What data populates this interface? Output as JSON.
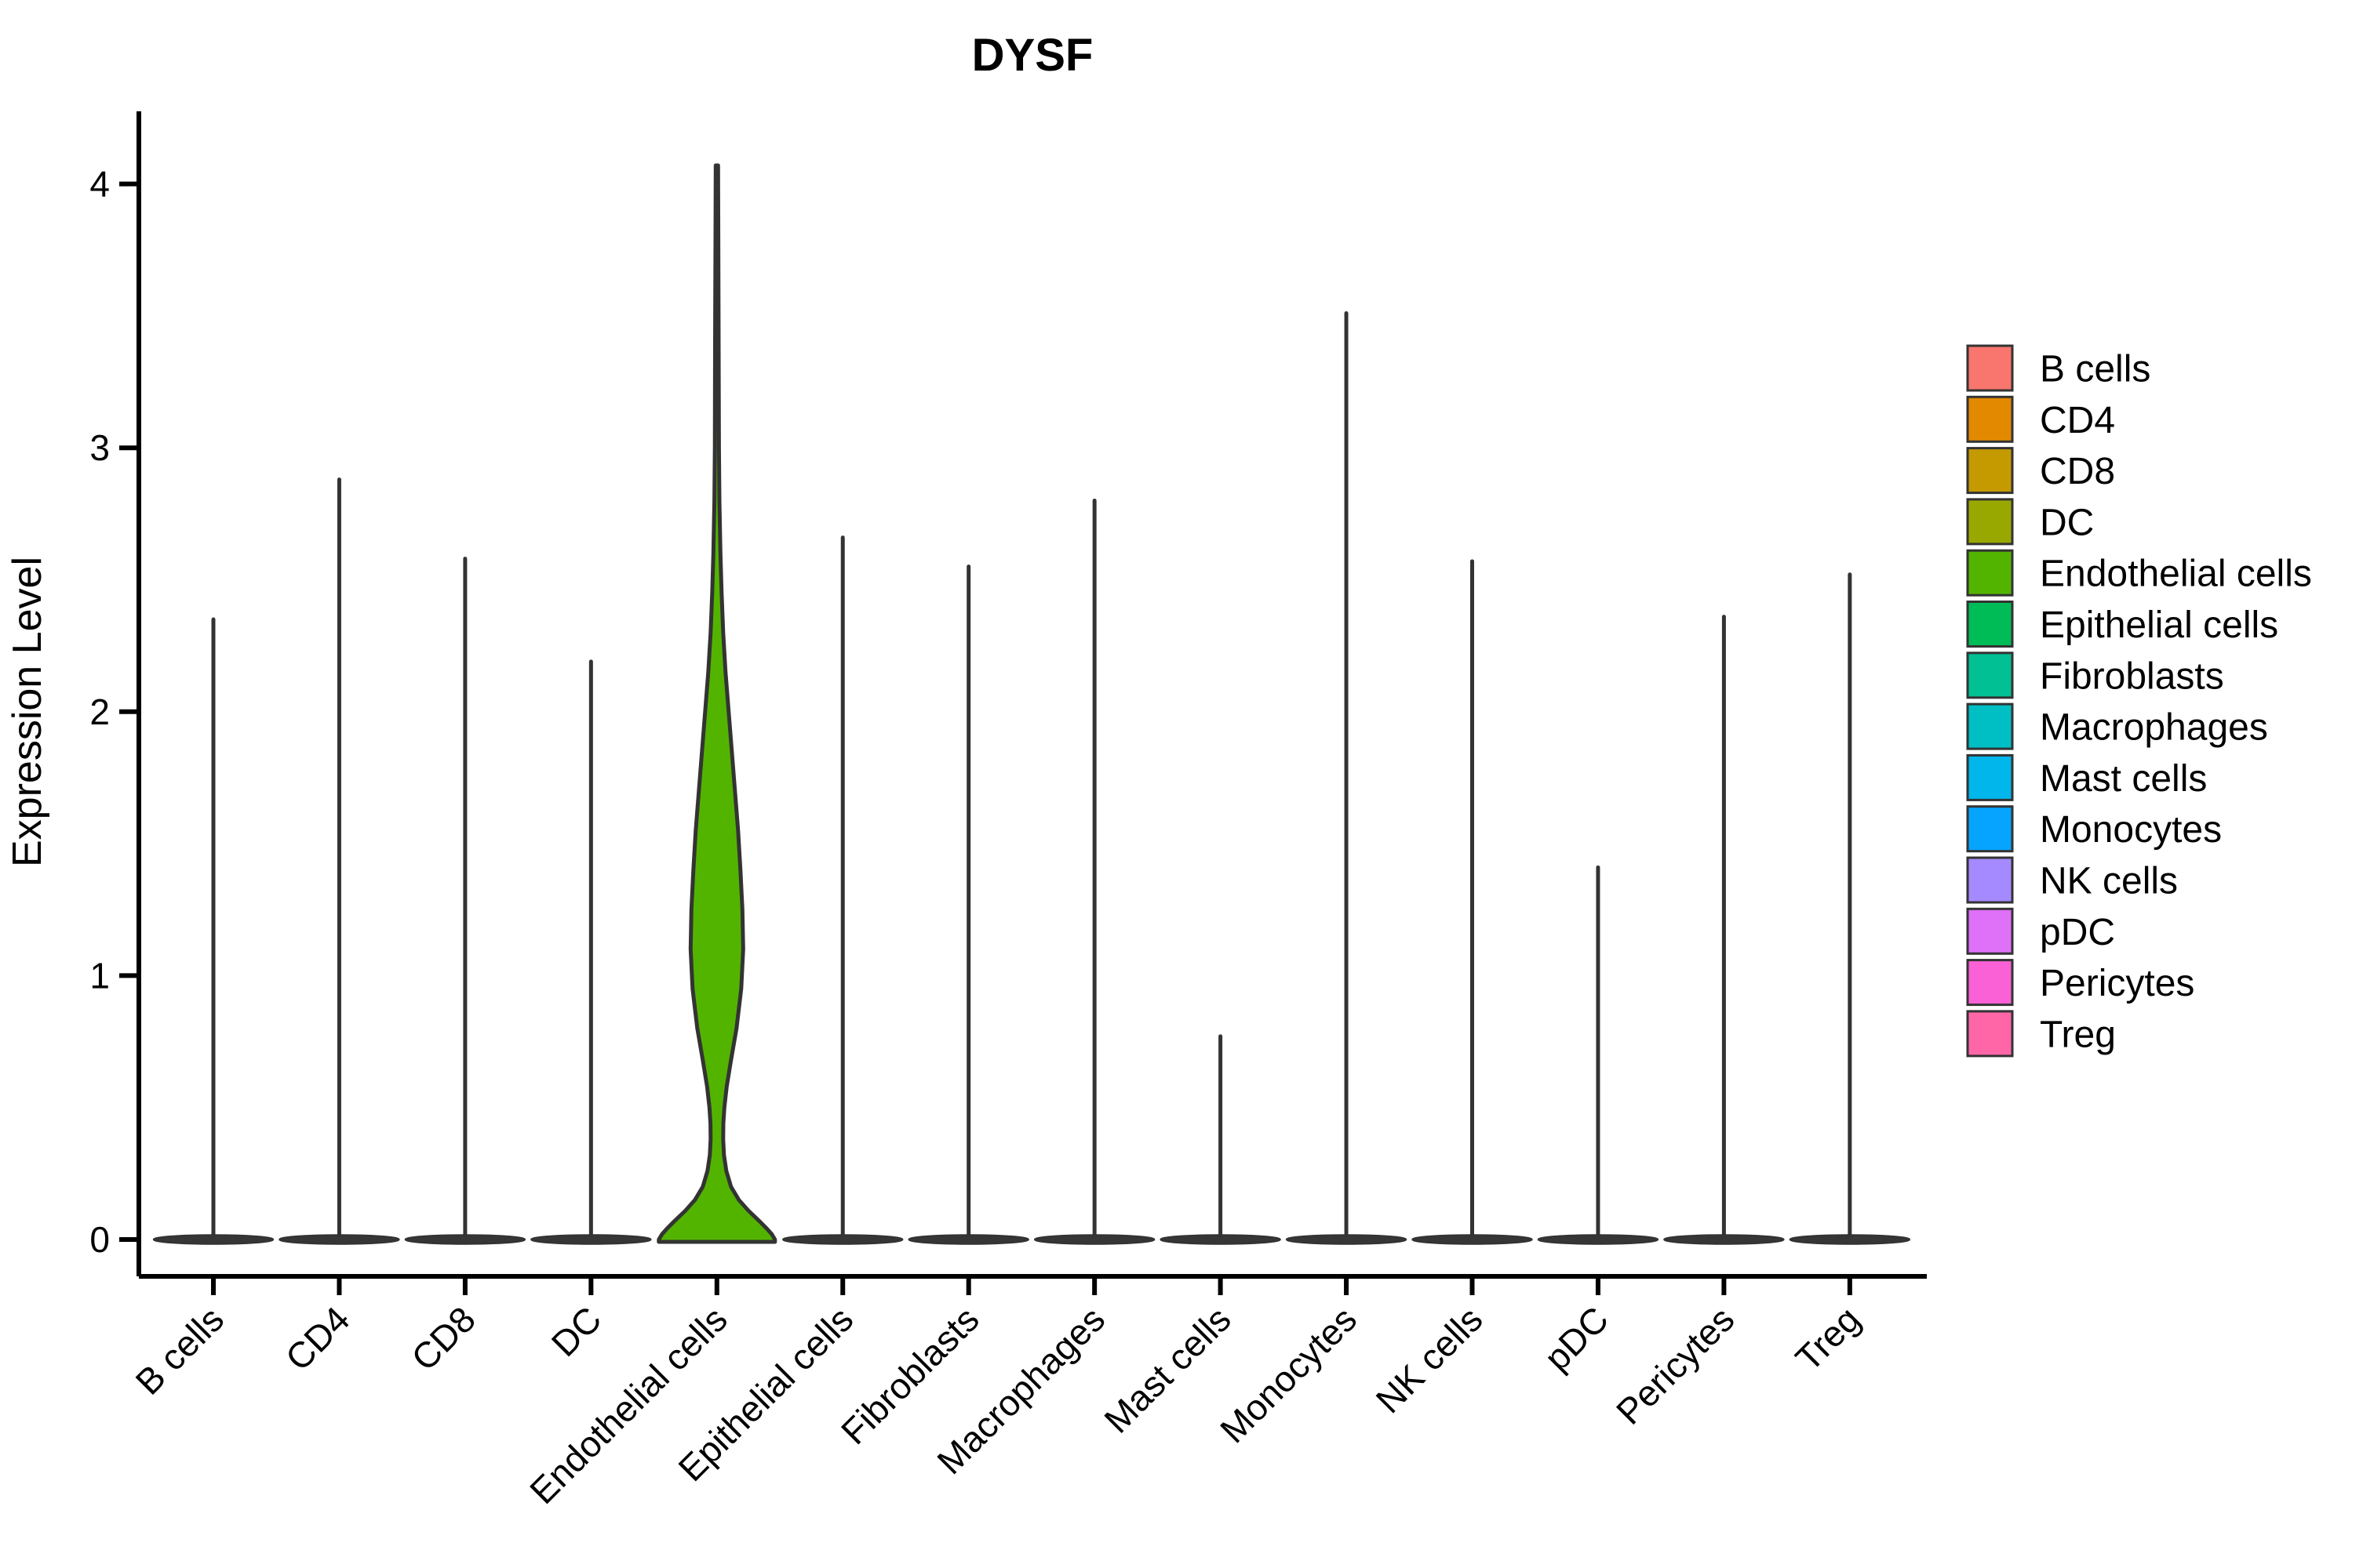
{
  "figure": {
    "title": "DYSF",
    "kind": "single-gene violin plot by cell type"
  },
  "chart_data": {
    "type": "violin",
    "title": "DYSF",
    "xlabel": "",
    "ylabel": "Expression Level",
    "ylim": [
      0,
      4.3
    ],
    "y_ticks": [
      0,
      1,
      2,
      3,
      4
    ],
    "grid": "off",
    "legend_position": "right",
    "categories": [
      "B cells",
      "CD4",
      "CD8",
      "DC",
      "Endothelial cells",
      "Epithelial cells",
      "Fibroblasts",
      "Macrophages",
      "Mast cells",
      "Monocytes",
      "NK cells",
      "pDC",
      "Pericytes",
      "Treg"
    ],
    "series": [
      {
        "name": "B cells",
        "color": "#F8766D",
        "max_expression": 2.35,
        "body": "flat-at-zero-with-spike"
      },
      {
        "name": "CD4",
        "color": "#E38900",
        "max_expression": 2.88,
        "body": "flat-at-zero-with-spike"
      },
      {
        "name": "CD8",
        "color": "#C49A00",
        "max_expression": 2.58,
        "body": "flat-at-zero-with-spike"
      },
      {
        "name": "DC",
        "color": "#99A800",
        "max_expression": 2.19,
        "body": "flat-at-zero-with-spike"
      },
      {
        "name": "Endothelial cells",
        "color": "#53B400",
        "max_expression": 4.07,
        "body": "wide-violin"
      },
      {
        "name": "Epithelial cells",
        "color": "#00BC56",
        "max_expression": 2.66,
        "body": "flat-at-zero-with-spike"
      },
      {
        "name": "Fibroblasts",
        "color": "#00C094",
        "max_expression": 2.55,
        "body": "flat-at-zero-with-spike"
      },
      {
        "name": "Macrophages",
        "color": "#00BFC4",
        "max_expression": 2.8,
        "body": "flat-at-zero-with-spike"
      },
      {
        "name": "Mast cells",
        "color": "#00B6EB",
        "max_expression": 0.77,
        "body": "flat-at-zero-with-spike"
      },
      {
        "name": "Monocytes",
        "color": "#06A4FF",
        "max_expression": 3.51,
        "body": "flat-at-zero-with-spike"
      },
      {
        "name": "NK cells",
        "color": "#A58AFF",
        "max_expression": 2.57,
        "body": "flat-at-zero-with-spike"
      },
      {
        "name": "pDC",
        "color": "#DF70F8",
        "max_expression": 1.41,
        "body": "flat-at-zero-with-spike"
      },
      {
        "name": "Pericytes",
        "color": "#FB61D7",
        "max_expression": 2.36,
        "body": "flat-at-zero-with-spike"
      },
      {
        "name": "Treg",
        "color": "#FF66A8",
        "max_expression": 2.52,
        "body": "flat-at-zero-with-spike"
      }
    ],
    "distribution_note": "Every cell type has the bulk of its density at expression 0 (wide flat lens on the baseline) with a thin spike up to max_expression; only Endothelial cells show a visible wide violin body (bulge centered near expression 1.1, pinch near 0.38, broad base at 0).",
    "endothelial_violin_profile": [
      [
        4.07,
        0.02
      ],
      [
        3.8,
        0.024
      ],
      [
        3.4,
        0.03
      ],
      [
        3.0,
        0.035
      ],
      [
        2.8,
        0.043
      ],
      [
        2.6,
        0.06
      ],
      [
        2.45,
        0.08
      ],
      [
        2.3,
        0.107
      ],
      [
        2.15,
        0.147
      ],
      [
        2.0,
        0.2
      ],
      [
        1.85,
        0.253
      ],
      [
        1.7,
        0.307
      ],
      [
        1.55,
        0.36
      ],
      [
        1.4,
        0.4
      ],
      [
        1.25,
        0.433
      ],
      [
        1.1,
        0.447
      ],
      [
        0.95,
        0.413
      ],
      [
        0.8,
        0.333
      ],
      [
        0.68,
        0.24
      ],
      [
        0.58,
        0.167
      ],
      [
        0.5,
        0.127
      ],
      [
        0.44,
        0.109
      ],
      [
        0.38,
        0.107
      ],
      [
        0.32,
        0.12
      ],
      [
        0.26,
        0.16
      ],
      [
        0.2,
        0.24
      ],
      [
        0.15,
        0.373
      ],
      [
        0.11,
        0.533
      ],
      [
        0.07,
        0.72
      ],
      [
        0.04,
        0.853
      ],
      [
        0.02,
        0.933
      ],
      [
        0.0,
        0.987
      ]
    ],
    "legend_entries": [
      "B cells",
      "CD4",
      "CD8",
      "DC",
      "Endothelial cells",
      "Epithelial cells",
      "Fibroblasts",
      "Macrophages",
      "Mast cells",
      "Monocytes",
      "NK cells",
      "pDC",
      "Pericytes",
      "Treg"
    ],
    "styling": {
      "violin_outline": "#333333",
      "spike_color": "#333333",
      "baseline_lens_color": "#363636",
      "axis_color": "#000000",
      "text_color": "#000000",
      "background": "#FFFFFF"
    }
  }
}
